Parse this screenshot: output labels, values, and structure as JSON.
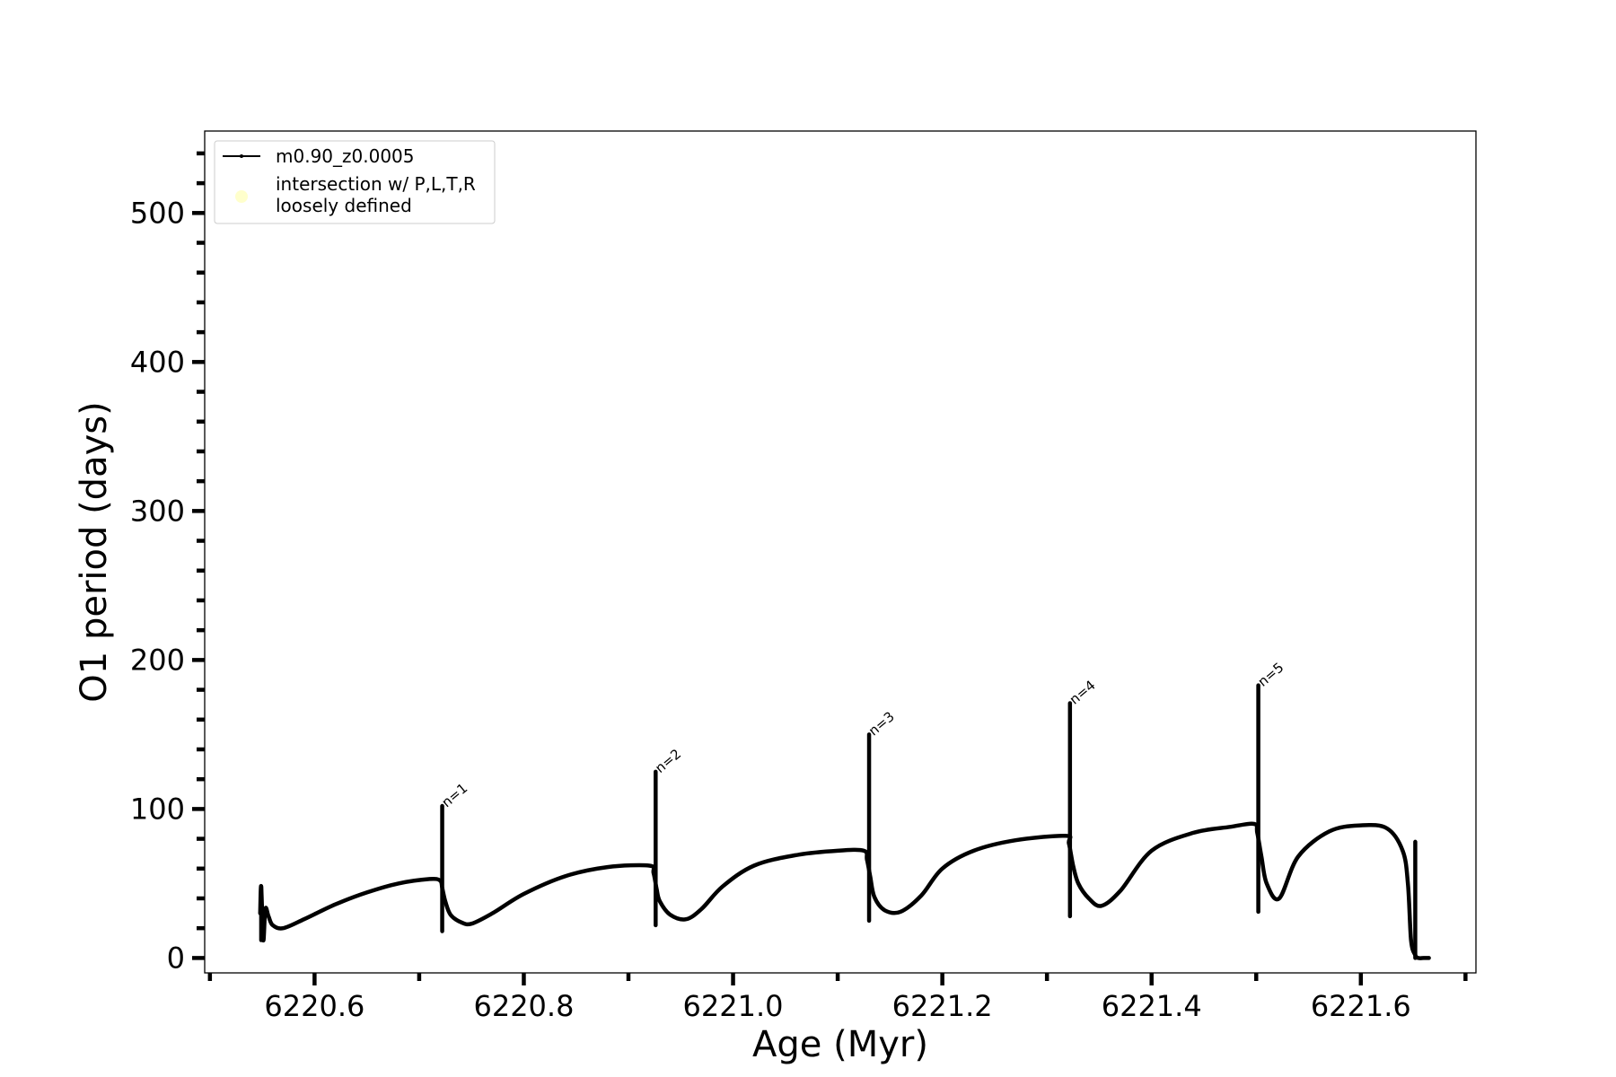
{
  "chart_data": {
    "type": "line",
    "title": "",
    "xlabel": "Age (Myr)",
    "ylabel": "O1 period (days)",
    "xlim": [
      6220.495,
      6221.71
    ],
    "ylim": [
      -10,
      555
    ],
    "grid": false,
    "legend_placement": "upper-left",
    "x_ticks": [
      6220.6,
      6220.8,
      6221.0,
      6221.2,
      6221.4,
      6221.6
    ],
    "x_tick_labels": [
      "6220.6",
      "6220.8",
      "6221.0",
      "6221.2",
      "6221.4",
      "6221.6"
    ],
    "y_ticks": [
      0,
      100,
      200,
      300,
      400,
      500
    ],
    "y_tick_labels": [
      "0",
      "100",
      "200",
      "300",
      "400",
      "500"
    ],
    "colors": {
      "series": "#000000",
      "intersection_marker": "#ffffcc"
    },
    "legend": [
      {
        "label": "m0.90_z0.0005",
        "kind": "line"
      },
      {
        "label_lines": [
          "intersection w/ P,L,T,R",
          "loosely defined"
        ],
        "kind": "marker"
      }
    ],
    "series": [
      {
        "name": "m0.90_z0.0005",
        "x": [
          6220.548,
          6220.549,
          6220.551,
          6220.553,
          6220.556,
          6220.56,
          6220.57,
          6220.59,
          6220.62,
          6220.65,
          6220.68,
          6220.71,
          6220.72,
          6220.722,
          6220.725,
          6220.73,
          6220.74,
          6220.75,
          6220.77,
          6220.8,
          6220.84,
          6220.88,
          6220.92,
          6220.924,
          6220.927,
          6220.93,
          6220.94,
          6220.955,
          6220.97,
          6220.99,
          6221.02,
          6221.06,
          6221.1,
          6221.125,
          6221.128,
          6221.131,
          6221.135,
          6221.145,
          6221.16,
          6221.18,
          6221.2,
          6221.23,
          6221.27,
          6221.318,
          6221.321,
          6221.325,
          6221.33,
          6221.34,
          6221.352,
          6221.37,
          6221.4,
          6221.44,
          6221.475,
          6221.498,
          6221.501,
          6221.505,
          6221.51,
          6221.522,
          6221.54,
          6221.57,
          6221.6,
          6221.625,
          6221.64,
          6221.645,
          6221.648,
          6221.652,
          6221.655,
          6221.66,
          6221.665
        ],
        "y": [
          30,
          48,
          12,
          33,
          28,
          22,
          20,
          26,
          36,
          44,
          50,
          53,
          52,
          47,
          38,
          29,
          24,
          23,
          30,
          43,
          55,
          61,
          62,
          57,
          46,
          38,
          29,
          26,
          33,
          48,
          62,
          69,
          72,
          72,
          66,
          55,
          41,
          32,
          31,
          42,
          60,
          72,
          79,
          82,
          77,
          62,
          50,
          40,
          35,
          45,
          72,
          84,
          88,
          90,
          84,
          68,
          50,
          40,
          68,
          85,
          89,
          87,
          72,
          50,
          12,
          2,
          0,
          0,
          0
        ]
      }
    ],
    "spikes": [
      {
        "x": 6220.549,
        "top": 48,
        "bottom": 12
      },
      {
        "x": 6220.722,
        "top": 102,
        "bottom": 18
      },
      {
        "x": 6220.926,
        "top": 125,
        "bottom": 22
      },
      {
        "x": 6221.13,
        "top": 150,
        "bottom": 25
      },
      {
        "x": 6221.322,
        "top": 171,
        "bottom": 28
      },
      {
        "x": 6221.502,
        "top": 183,
        "bottom": 31
      },
      {
        "x": 6221.652,
        "top": 78,
        "bottom": 0
      }
    ],
    "annotations": [
      {
        "text": "n=1",
        "x": 6220.722,
        "y": 102
      },
      {
        "text": "n=2",
        "x": 6220.926,
        "y": 125
      },
      {
        "text": "n=3",
        "x": 6221.13,
        "y": 150
      },
      {
        "text": "n=4",
        "x": 6221.322,
        "y": 171
      },
      {
        "text": "n=5",
        "x": 6221.502,
        "y": 183
      }
    ]
  }
}
